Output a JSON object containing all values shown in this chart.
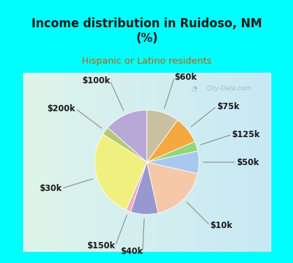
{
  "title": "Income distribution in Ruidoso, NM\n(%)",
  "subtitle": "Hispanic or Latino residents",
  "title_color": "#1a1a1a",
  "subtitle_color": "#cc5500",
  "background_color": "#00ffff",
  "chart_bg_left": "#e8f5ee",
  "chart_bg_right": "#cde8f0",
  "watermark": "City-Data.com",
  "labels": [
    "$100k",
    "$200k",
    "$30k",
    "$150k",
    "$40k",
    "$10k",
    "$50k",
    "$125k",
    "$75k",
    "$60k"
  ],
  "sizes": [
    13.5,
    2.5,
    27.5,
    1.5,
    8.5,
    18.0,
    7.0,
    3.0,
    8.5,
    10.0
  ],
  "colors": [
    "#b8a8d8",
    "#b8c870",
    "#f0f080",
    "#f0b0c0",
    "#9898d0",
    "#f5c8a8",
    "#a8c8f0",
    "#90d878",
    "#f5a840",
    "#c8c0a0"
  ],
  "start_angle": 90,
  "label_font_size": 8.5,
  "label_font_weight": "bold",
  "label_color": "#1a1a1a"
}
